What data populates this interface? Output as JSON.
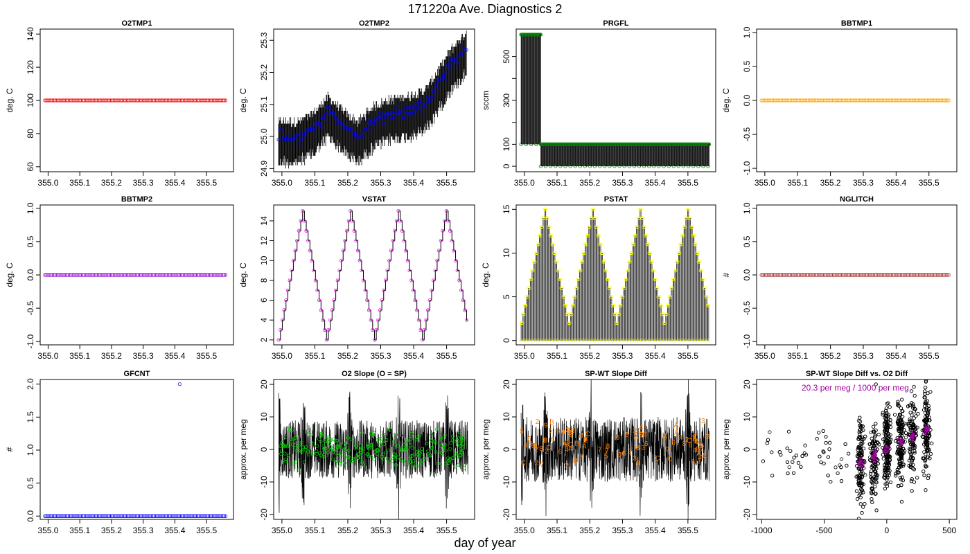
{
  "page": {
    "title": "171220a   Ave. Diagnostics 2",
    "xlabel": "day of year"
  },
  "chart_data": [
    {
      "id": "o2tmp1",
      "type": "scatter",
      "title": "O2TMP1",
      "xlabel": "",
      "ylabel": "deg. C",
      "xlim": [
        354.975,
        355.585
      ],
      "ylim": [
        57,
        143
      ],
      "xticks": [
        355.0,
        355.1,
        355.2,
        355.3,
        355.4,
        355.5
      ],
      "yticks": [
        60,
        80,
        100,
        120,
        140
      ],
      "grid": false,
      "series": [
        {
          "style": "open-circle",
          "color": "#ff0000",
          "x_range": [
            354.99,
            355.56
          ],
          "n": 125,
          "constant": 100
        }
      ]
    },
    {
      "id": "o2tmp2",
      "type": "line",
      "title": "O2TMP2",
      "xlabel": "",
      "ylabel": "deg. C",
      "xlim": [
        354.975,
        355.585
      ],
      "ylim": [
        24.89,
        25.335
      ],
      "xticks": [
        355.0,
        355.1,
        355.2,
        355.3,
        355.4,
        355.5
      ],
      "yticks": [
        24.9,
        25.0,
        25.1,
        25.2,
        25.3
      ],
      "grid": false,
      "series": [
        {
          "style": "vertical-range",
          "color": "#000000",
          "x_range": [
            354.99,
            355.56
          ],
          "trend_x": [
            354.99,
            355.05,
            355.1,
            355.14,
            355.2,
            355.23,
            355.28,
            355.33,
            355.38,
            355.42,
            355.45,
            355.48,
            355.51,
            355.56
          ],
          "trend_y": [
            25.0,
            25.0,
            25.03,
            25.08,
            25.02,
            25.0,
            25.05,
            25.07,
            25.08,
            25.09,
            25.12,
            25.17,
            25.22,
            25.28
          ]
        },
        {
          "style": "open-circle",
          "color": "#0000ff",
          "x_range": [
            354.99,
            355.56
          ],
          "n": 140
        }
      ]
    },
    {
      "id": "prgfl",
      "type": "line",
      "title": "PRGFL",
      "xlabel": "",
      "ylabel": "sccm",
      "xlim": [
        354.975,
        355.585
      ],
      "ylim": [
        -25,
        625
      ],
      "xticks": [
        355.0,
        355.1,
        355.2,
        355.3,
        355.4,
        355.5
      ],
      "yticks": [
        0,
        100,
        300,
        500
      ],
      "minor_yticks": [
        200,
        400
      ],
      "grid": false,
      "segments": [
        {
          "x_range": [
            354.99,
            355.05
          ],
          "high": 600,
          "low": 100
        },
        {
          "x_range": [
            355.05,
            355.565
          ],
          "high": 100,
          "low": 0
        }
      ],
      "series": [
        {
          "style": "open-circle",
          "color": "#008000"
        }
      ]
    },
    {
      "id": "bbtmp1",
      "type": "scatter",
      "title": "BBTMP1",
      "xlabel": "",
      "ylabel": "deg. C",
      "xlim": [
        354.975,
        355.585
      ],
      "ylim": [
        -1.05,
        1.05
      ],
      "xticks": [
        355.0,
        355.1,
        355.2,
        355.3,
        355.4,
        355.5
      ],
      "yticks": [
        -1.0,
        -0.5,
        0.0,
        0.5,
        1.0
      ],
      "grid": false,
      "series": [
        {
          "style": "open-circle",
          "color": "#ffa500",
          "x_range": [
            354.99,
            355.56
          ],
          "n": 125,
          "constant": 0
        }
      ]
    },
    {
      "id": "bbtmp2",
      "type": "scatter",
      "title": "BBTMP2",
      "xlabel": "",
      "ylabel": "deg. C",
      "xlim": [
        354.975,
        355.585
      ],
      "ylim": [
        -1.05,
        1.05
      ],
      "xticks": [
        355.0,
        355.1,
        355.2,
        355.3,
        355.4,
        355.5
      ],
      "yticks": [
        -1.0,
        -0.5,
        0.0,
        0.5,
        1.0
      ],
      "grid": false,
      "series": [
        {
          "style": "open-circle",
          "color": "#9400d3",
          "x_range": [
            354.99,
            355.56
          ],
          "n": 125,
          "constant": 0
        }
      ]
    },
    {
      "id": "vstat",
      "type": "line",
      "title": "VSTAT",
      "xlabel": "",
      "ylabel": "deg. C",
      "xlim": [
        354.975,
        355.585
      ],
      "ylim": [
        1.5,
        15.6
      ],
      "xticks": [
        355.0,
        355.1,
        355.2,
        355.3,
        355.4,
        355.5
      ],
      "yticks": [
        2,
        4,
        6,
        8,
        10,
        12,
        14
      ],
      "grid": false,
      "cycle": {
        "x_start": 354.99,
        "x_end": 355.565,
        "period": 0.1455,
        "min": 2,
        "max": 15,
        "step": 1
      },
      "series": [
        {
          "style": "step-line",
          "color": "#000000"
        },
        {
          "style": "open-circle",
          "color": "#ff00ff"
        }
      ]
    },
    {
      "id": "pstat",
      "type": "line",
      "title": "PSTAT",
      "xlabel": "",
      "ylabel": "deg. C",
      "xlim": [
        354.975,
        355.585
      ],
      "ylim": [
        -0.5,
        15.5
      ],
      "xticks": [
        355.0,
        355.1,
        355.2,
        355.3,
        355.4,
        355.5
      ],
      "yticks": [
        0,
        5,
        10,
        15
      ],
      "grid": false,
      "cycle": {
        "x_start": 354.99,
        "x_end": 355.565,
        "period": 0.1455,
        "min": 2,
        "max": 15,
        "step": 1
      },
      "series": [
        {
          "style": "vertical-range",
          "color": "#000000",
          "low": 0
        },
        {
          "style": "open-circle",
          "color": "#ffff00"
        }
      ]
    },
    {
      "id": "nglitch",
      "type": "scatter",
      "title": "NGLITCH",
      "xlabel": "",
      "ylabel": "#",
      "xlim": [
        354.975,
        355.585
      ],
      "ylim": [
        -1.05,
        1.05
      ],
      "xticks": [
        355.0,
        355.1,
        355.2,
        355.3,
        355.4,
        355.5
      ],
      "yticks": [
        -1.0,
        -0.5,
        0.0,
        0.5,
        1.0
      ],
      "grid": false,
      "series": [
        {
          "style": "open-circle",
          "color": "#a52a2a",
          "x_range": [
            354.99,
            355.56
          ],
          "n": 125,
          "constant": 0
        }
      ]
    },
    {
      "id": "gfcnt",
      "type": "scatter",
      "title": "GFCNT",
      "xlabel": "",
      "ylabel": "#",
      "xlim": [
        354.975,
        355.585
      ],
      "ylim": [
        -0.05,
        2.07
      ],
      "xticks": [
        355.0,
        355.1,
        355.2,
        355.3,
        355.4,
        355.5
      ],
      "yticks": [
        0.0,
        0.5,
        1.0,
        1.5,
        2.0
      ],
      "grid": false,
      "series": [
        {
          "style": "open-circle",
          "color": "#0000ff",
          "x_range": [
            354.99,
            355.56
          ],
          "n": 125,
          "constant": 0,
          "outliers": [
            {
              "x": 355.415,
              "y": 2.0
            }
          ]
        }
      ]
    },
    {
      "id": "o2slope",
      "type": "line",
      "title": "O2 Slope (O = SP)",
      "xlabel": "",
      "ylabel": "approx. per meg",
      "xlim": [
        354.975,
        355.585
      ],
      "ylim": [
        -21.5,
        21.5
      ],
      "xticks": [
        355.0,
        355.1,
        355.2,
        355.3,
        355.4,
        355.5
      ],
      "yticks": [
        -20,
        -10,
        0,
        10,
        20
      ],
      "grid": false,
      "band": {
        "x_range": [
          354.99,
          355.565
        ],
        "center": 0,
        "halfwidth": 9,
        "spikes": [
          354.99,
          355.065,
          355.205,
          355.355,
          355.5
        ]
      },
      "series": [
        {
          "style": "line",
          "color": "#000000"
        },
        {
          "style": "open-circle",
          "color": "#00cc00",
          "n": 260,
          "spread": 6
        }
      ]
    },
    {
      "id": "spwtdiff",
      "type": "line",
      "title": "SP-WT Slope Diff",
      "xlabel": "",
      "ylabel": "approx. per meg",
      "xlim": [
        354.975,
        355.585
      ],
      "ylim": [
        -21.5,
        21.5
      ],
      "xticks": [
        355.0,
        355.1,
        355.2,
        355.3,
        355.4,
        355.5
      ],
      "yticks": [
        -20,
        -10,
        0,
        10,
        20
      ],
      "grid": false,
      "band": {
        "x_range": [
          354.99,
          355.565
        ],
        "center": 0,
        "halfwidth": 10,
        "spikes": [
          354.99,
          355.065,
          355.205,
          355.355,
          355.5
        ]
      },
      "series": [
        {
          "style": "line",
          "color": "#000000"
        },
        {
          "style": "glyphs",
          "color": "#ff8000",
          "glyphs": [
            "2",
            "3",
            "4",
            "5",
            "6",
            "7",
            "8",
            "9",
            "A",
            "B",
            "C"
          ],
          "n": 95,
          "spread": 8
        }
      ]
    },
    {
      "id": "spwt_vs_o2",
      "type": "scatter",
      "title": "SP-WT Slope Diff vs. O2 Diff",
      "xlabel": "",
      "ylabel": "approx. per meg",
      "xlim": [
        -1040,
        560
      ],
      "ylim": [
        -21.5,
        21.5
      ],
      "xticks": [
        -1000,
        -500,
        0,
        500
      ],
      "yticks": [
        -20,
        -10,
        0,
        10,
        20
      ],
      "grid": false,
      "annotation": {
        "text": "20.3 per meg / 1000 per meg",
        "color": "#a000a0"
      },
      "clusters": [
        -210,
        -100,
        0,
        110,
        210,
        320
      ],
      "series": [
        {
          "style": "open-circle",
          "color": "#000000",
          "n": 1700
        },
        {
          "style": "cross",
          "color": "#a000a0"
        }
      ]
    }
  ]
}
